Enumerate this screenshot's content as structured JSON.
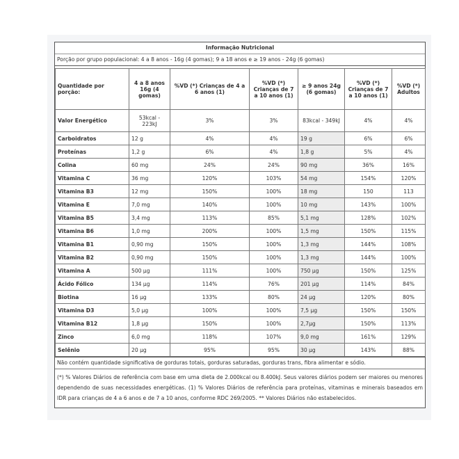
{
  "title": "Informação Nutricional",
  "portion": "Porção por grupo populacional: 4 a 8 anos - 16g (4 gomas); 9 a 18 anos e ≥ 19 anos - 24g (6 gomas)",
  "table": {
    "header": [
      "Quantidade por porção:",
      "4 a 8 anos 16g (4 gomas)",
      "%VD (*) Crianças de 4 a 6 anos (1)",
      "%VD (*) Crianças de 7 a 10 anos (1)",
      "≥ 9 anos 24g (6 gomas)",
      "%VD (*) Crianças de 7 a 10 anos (1)",
      "%VD (*) Adultos"
    ],
    "rows": [
      [
        "Valor Energético",
        "53kcal - 223kJ",
        "3%",
        "3%",
        "83kcal - 349kJ",
        "4%",
        "4%"
      ],
      [
        "Carboidratos",
        "12 g",
        "4%",
        "4%",
        "19 g",
        "6%",
        "6%"
      ],
      [
        "Proteínas",
        "1,2 g",
        "6%",
        "4%",
        "1,8 g",
        "5%",
        "4%"
      ],
      [
        "Colina",
        "60 mg",
        "24%",
        "24%",
        "90 mg",
        "36%",
        "16%"
      ],
      [
        "Vitamina C",
        "36 mg",
        "120%",
        "103%",
        "54 mg",
        "154%",
        "120%"
      ],
      [
        "Vitamina B3",
        "12 mg",
        "150%",
        "100%",
        "18 mg",
        "150",
        "113"
      ],
      [
        "Vitamina E",
        "7,0 mg",
        "140%",
        "100%",
        "10 mg",
        "143%",
        "100%"
      ],
      [
        "Vitamina B5",
        "3,4 mg",
        "113%",
        "85%",
        "5,1 mg",
        "128%",
        "102%"
      ],
      [
        "Vitamina B6",
        "1,0 mg",
        "200%",
        "100%",
        "1,5 mg",
        "150%",
        "115%"
      ],
      [
        "Vitamina B1",
        "0,90 mg",
        "150%",
        "100%",
        "1,3 mg",
        "144%",
        "108%"
      ],
      [
        "Vitamina B2",
        "0,90 mg",
        "150%",
        "100%",
        "1,3 mg",
        "144%",
        "100%"
      ],
      [
        "Vitamina A",
        "500 µg",
        "111%",
        "100%",
        "750 µg",
        "150%",
        "125%"
      ],
      [
        "Ácido Fólico",
        "134 µg",
        "114%",
        "76%",
        "201 µg",
        "114%",
        "84%"
      ],
      [
        "Biotina",
        "16 µg",
        "133%",
        "80%",
        "24 µg",
        "120%",
        "80%"
      ],
      [
        "Vitamina D3",
        "5,0 µg",
        "100%",
        "100%",
        "7,5 µg",
        "150%",
        "150%"
      ],
      [
        "Vitamina B12",
        "1,8 µg",
        "150%",
        "100%",
        "2,7µg",
        "150%",
        "113%"
      ],
      [
        "Zinco",
        "6,0 mg",
        "118%",
        "107%",
        "9,0 mg",
        "161%",
        "129%"
      ],
      [
        "Selênio",
        "20 µg",
        "95%",
        "95%",
        "30 µg",
        "143%",
        "88%"
      ]
    ]
  },
  "footer": {
    "note": "Não contém quantidade significativa de gorduras totais, gorduras saturadas, gorduras trans, fibra alimentar e sódio.",
    "references": "(*) % Valores Diários de referência com base em uma dieta de 2.000kcal ou 8.400kJ. Seus valores diários podem ser maiores ou menores dependendo de suas necessidades energéticas. (1) % Valores Diários de referência para proteínas, vitaminas e minerais baseados em IDR para crianças de 4 a 6 anos e de 7 a 10 anos, conforme RDC 269/2005. ** Valores Diários não estabelecidos."
  }
}
